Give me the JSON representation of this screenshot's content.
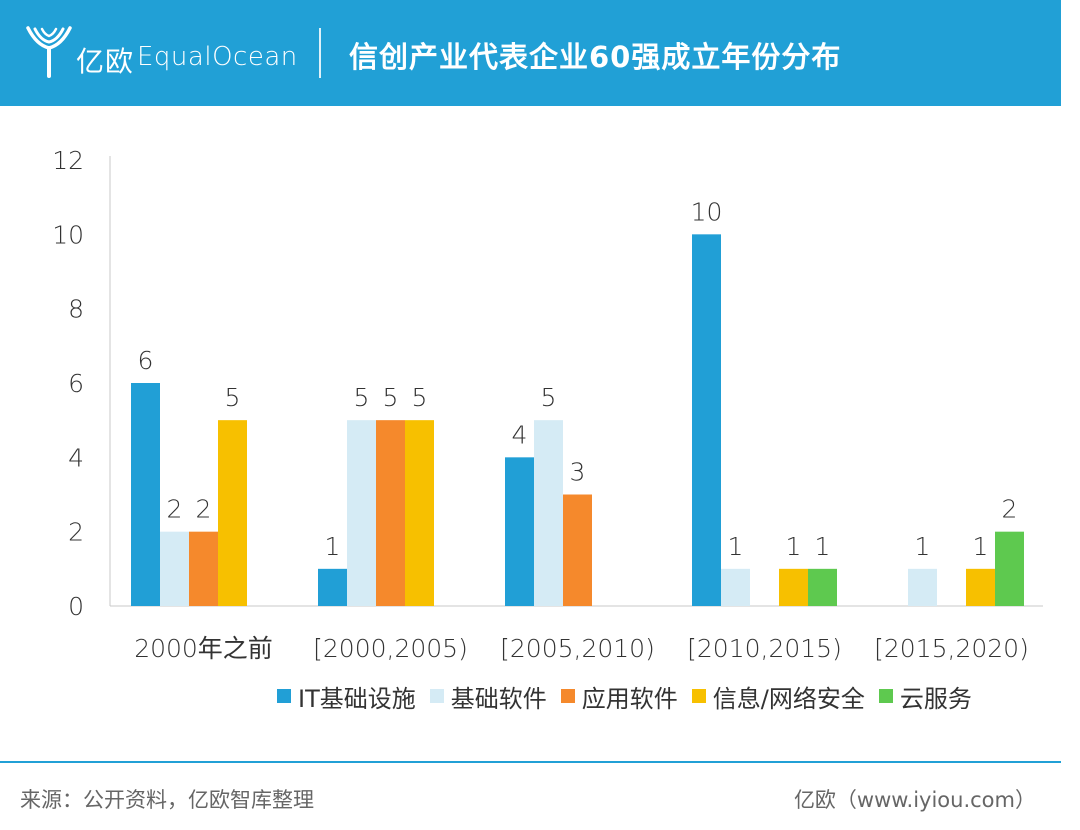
{
  "header": {
    "logo_cn": "亿欧",
    "logo_en": "EqualOcean",
    "title": "信创产业代表企业60强成立年份分布",
    "bg_color": "#21a0d6"
  },
  "chart_data": {
    "type": "bar",
    "title": "信创产业代表企业60强成立年份分布",
    "categories": [
      "2000年之前",
      "[2000,2005)",
      "[2005,2010)",
      "[2010,2015)",
      "[2015,2020)"
    ],
    "series": [
      {
        "name": "IT基础设施",
        "color": "#219fd6",
        "values": [
          6,
          1,
          4,
          10,
          null
        ]
      },
      {
        "name": "基础软件",
        "color": "#d5ebf5",
        "values": [
          2,
          5,
          5,
          1,
          1
        ]
      },
      {
        "name": "应用软件",
        "color": "#f5892c",
        "values": [
          2,
          5,
          3,
          null,
          null
        ]
      },
      {
        "name": "信息/网络安全",
        "color": "#f7c000",
        "values": [
          5,
          5,
          null,
          1,
          1
        ]
      },
      {
        "name": "云服务",
        "color": "#5ec94f",
        "values": [
          null,
          null,
          null,
          1,
          2
        ]
      }
    ],
    "yticks": [
      0,
      2,
      4,
      6,
      8,
      10,
      12
    ],
    "ylim": [
      0,
      12
    ],
    "xlabel": "",
    "ylabel": "",
    "legend_position": "bottom"
  },
  "footer": {
    "source": "来源：公开资料，亿欧智库整理",
    "site": "亿欧（www.iyiou.com）"
  }
}
